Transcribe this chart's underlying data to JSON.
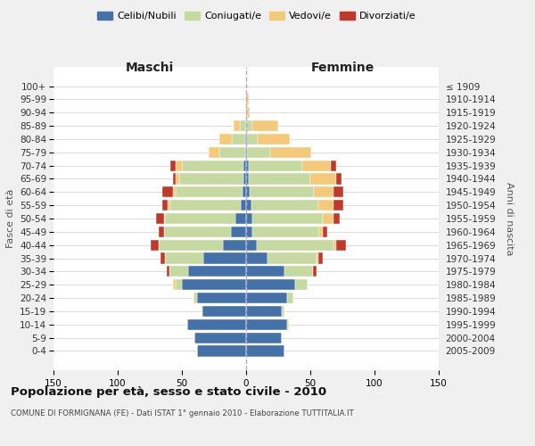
{
  "age_groups": [
    "0-4",
    "5-9",
    "10-14",
    "15-19",
    "20-24",
    "25-29",
    "30-34",
    "35-39",
    "40-44",
    "45-49",
    "50-54",
    "55-59",
    "60-64",
    "65-69",
    "70-74",
    "75-79",
    "80-84",
    "85-89",
    "90-94",
    "95-99",
    "100+"
  ],
  "birth_years": [
    "2005-2009",
    "2000-2004",
    "1995-1999",
    "1990-1994",
    "1985-1989",
    "1980-1984",
    "1975-1979",
    "1970-1974",
    "1965-1969",
    "1960-1964",
    "1955-1959",
    "1950-1954",
    "1945-1949",
    "1940-1944",
    "1935-1939",
    "1930-1934",
    "1925-1929",
    "1920-1924",
    "1915-1919",
    "1910-1914",
    "≤ 1909"
  ],
  "maschi": {
    "celibi": [
      38,
      40,
      46,
      34,
      38,
      50,
      45,
      33,
      18,
      12,
      8,
      4,
      3,
      2,
      2,
      1,
      1,
      0,
      0,
      0,
      0
    ],
    "coniugati": [
      0,
      0,
      0,
      1,
      3,
      5,
      15,
      30,
      50,
      52,
      55,
      55,
      52,
      50,
      48,
      20,
      10,
      5,
      1,
      0,
      0
    ],
    "vedovi": [
      0,
      0,
      0,
      0,
      0,
      2,
      0,
      0,
      0,
      0,
      1,
      2,
      2,
      3,
      5,
      8,
      10,
      5,
      0,
      0,
      0
    ],
    "divorziati": [
      0,
      0,
      0,
      0,
      0,
      0,
      2,
      4,
      6,
      4,
      6,
      4,
      8,
      2,
      4,
      0,
      0,
      0,
      0,
      0,
      0
    ]
  },
  "femmine": {
    "nubili": [
      30,
      28,
      32,
      28,
      32,
      38,
      30,
      17,
      8,
      5,
      5,
      4,
      3,
      2,
      2,
      1,
      1,
      0,
      0,
      0,
      0
    ],
    "coniugate": [
      0,
      0,
      1,
      2,
      5,
      10,
      22,
      38,
      60,
      52,
      55,
      52,
      50,
      48,
      42,
      18,
      8,
      5,
      1,
      0,
      0
    ],
    "vedove": [
      0,
      0,
      0,
      0,
      0,
      0,
      0,
      1,
      2,
      3,
      8,
      12,
      15,
      20,
      22,
      32,
      25,
      20,
      2,
      2,
      0
    ],
    "divorziate": [
      0,
      0,
      0,
      0,
      0,
      0,
      3,
      4,
      8,
      3,
      5,
      8,
      8,
      4,
      4,
      0,
      0,
      0,
      0,
      0,
      0
    ]
  },
  "colors": {
    "celibi": "#4472a8",
    "coniugati": "#c5d9a0",
    "vedovi": "#f5c97a",
    "divorziati": "#c0392b"
  },
  "xlim": 150,
  "title": "Popolazione per età, sesso e stato civile - 2010",
  "subtitle": "COMUNE DI FORMIGNANA (FE) - Dati ISTAT 1° gennaio 2010 - Elaborazione TUTTITALIA.IT",
  "ylabel_left": "Fasce di età",
  "ylabel_right": "Anni di nascita",
  "xlabel_left": "Maschi",
  "xlabel_right": "Femmine",
  "bg_color": "#f0f0f0",
  "plot_bg": "#ffffff",
  "grid_color": "#cccccc"
}
